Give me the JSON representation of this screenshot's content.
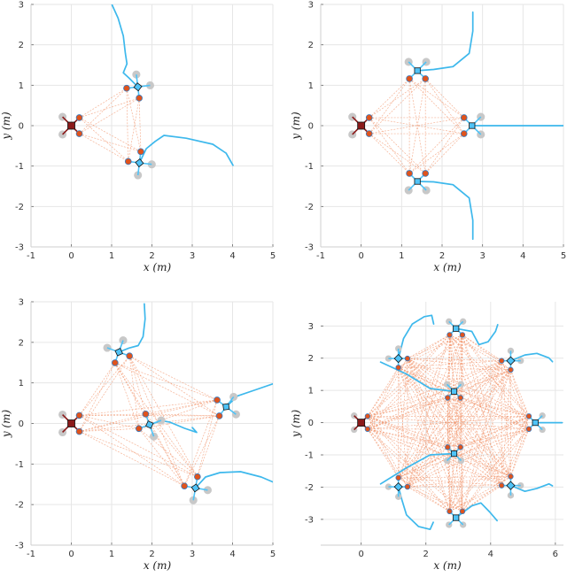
{
  "colors": {
    "leader": "#8b1a1a",
    "follower": "#4fc3f7",
    "trajectory": "#3db8ec",
    "marker": "#e0531c",
    "marker_edge": "#3a7bbf",
    "propeller": "#c8c8c8",
    "link": "#f08a5d",
    "grid": "#e6e6e6",
    "axis": "#cfcfcf"
  },
  "chart_data": [
    {
      "type": "line",
      "xlabel": "x (m)",
      "ylabel": "y (m)",
      "xlim": [
        -1,
        5
      ],
      "ylim": [
        -3,
        3
      ],
      "xticks": [
        -1,
        0,
        1,
        2,
        3,
        4,
        5
      ],
      "yticks": [
        -3,
        -2,
        -1,
        0,
        1,
        2,
        3
      ],
      "grid": true,
      "drones": [
        {
          "role": "leader",
          "x": 0,
          "y": 0,
          "heading": 0
        },
        {
          "role": "follower",
          "x": 1.65,
          "y": 0.96,
          "heading": 232
        },
        {
          "role": "follower",
          "x": 1.69,
          "y": -0.92,
          "heading": 128
        }
      ],
      "trajectories": [
        [
          [
            1.01,
            2.99
          ],
          [
            1.16,
            2.66
          ],
          [
            1.29,
            2.22
          ],
          [
            1.34,
            1.79
          ],
          [
            1.38,
            1.53
          ],
          [
            1.29,
            1.31
          ],
          [
            1.43,
            1.18
          ],
          [
            1.65,
            0.96
          ]
        ],
        [
          [
            1.69,
            -0.92
          ],
          [
            1.86,
            -0.57
          ],
          [
            2.08,
            -0.39
          ],
          [
            2.3,
            -0.24
          ],
          [
            2.85,
            -0.31
          ],
          [
            3.51,
            -0.46
          ],
          [
            3.84,
            -0.68
          ],
          [
            4.01,
            -0.98
          ]
        ]
      ]
    },
    {
      "type": "line",
      "xlabel": "x (m)",
      "ylabel": "y (m)",
      "xlim": [
        -1,
        5
      ],
      "ylim": [
        -3,
        3
      ],
      "xticks": [
        -1,
        0,
        1,
        2,
        3,
        4,
        5
      ],
      "yticks": [
        -3,
        -2,
        -1,
        0,
        1,
        2,
        3
      ],
      "grid": true,
      "drones": [
        {
          "role": "leader",
          "x": 0,
          "y": 0,
          "heading": 0
        },
        {
          "role": "follower",
          "x": 1.39,
          "y": 1.36,
          "heading": 270
        },
        {
          "role": "follower",
          "x": 2.74,
          "y": 0,
          "heading": 180
        },
        {
          "role": "follower",
          "x": 1.39,
          "y": -1.38,
          "heading": 90
        }
      ],
      "trajectories": [
        [
          [
            2.76,
            2.81
          ],
          [
            2.76,
            2.34
          ],
          [
            2.67,
            1.79
          ],
          [
            2.27,
            1.46
          ],
          [
            1.79,
            1.39
          ],
          [
            1.39,
            1.36
          ]
        ],
        [
          [
            2.74,
            0
          ],
          [
            5,
            0
          ]
        ],
        [
          [
            1.39,
            -1.38
          ],
          [
            1.79,
            -1.39
          ],
          [
            2.27,
            -1.46
          ],
          [
            2.67,
            -1.79
          ],
          [
            2.76,
            -2.34
          ],
          [
            2.76,
            -2.81
          ]
        ]
      ]
    },
    {
      "type": "line",
      "xlabel": "x (m)",
      "ylabel": "y (m)",
      "xlim": [
        -1,
        5
      ],
      "ylim": [
        -3,
        3
      ],
      "xticks": [
        -1,
        0,
        1,
        2,
        3,
        4,
        5
      ],
      "yticks": [
        -3,
        -2,
        -1,
        0,
        1,
        2,
        3
      ],
      "grid": true,
      "drones": [
        {
          "role": "leader",
          "x": 0,
          "y": 0,
          "heading": 0
        },
        {
          "role": "follower",
          "x": 1.18,
          "y": 1.76,
          "heading": 295
        },
        {
          "role": "follower",
          "x": 3.84,
          "y": 0.41,
          "heading": 188
        },
        {
          "role": "follower",
          "x": 1.94,
          "y": -0.03,
          "heading": 155
        },
        {
          "role": "follower",
          "x": 3.08,
          "y": -1.59,
          "heading": 125
        }
      ],
      "trajectories": [
        [
          [
            1.81,
            2.95
          ],
          [
            1.83,
            2.58
          ],
          [
            1.78,
            2.14
          ],
          [
            1.66,
            1.92
          ],
          [
            1.43,
            1.86
          ],
          [
            1.18,
            1.76
          ]
        ],
        [
          [
            3.84,
            0.41
          ],
          [
            4.13,
            0.68
          ],
          [
            4.57,
            0.83
          ],
          [
            5.04,
            0.99
          ]
        ],
        [
          [
            1.94,
            -0.03
          ],
          [
            2.23,
            0.07
          ],
          [
            2.45,
            0.03
          ],
          [
            2.81,
            -0.12
          ],
          [
            3.11,
            -0.22
          ],
          [
            3.0,
            -0.1
          ]
        ],
        [
          [
            3.08,
            -1.59
          ],
          [
            3.33,
            -1.32
          ],
          [
            3.69,
            -1.21
          ],
          [
            4.2,
            -1.19
          ],
          [
            4.71,
            -1.32
          ],
          [
            5.04,
            -1.46
          ]
        ]
      ]
    },
    {
      "type": "line",
      "xlabel": "x (m)",
      "ylabel": "y (m)",
      "xlim": [
        -1.25,
        6.25
      ],
      "ylim": [
        -3.8,
        3.75
      ],
      "xticks": [
        0,
        2,
        4,
        6
      ],
      "yticks": [
        -3,
        -2,
        -1,
        0,
        1,
        2,
        3
      ],
      "grid": true,
      "drones": [
        {
          "role": "leader",
          "x": 0,
          "y": 0,
          "heading": 0
        },
        {
          "role": "follower",
          "x": 2.93,
          "y": 2.92,
          "heading": 270
        },
        {
          "role": "follower",
          "x": 1.15,
          "y": 1.99,
          "heading": 315
        },
        {
          "role": "follower",
          "x": 4.62,
          "y": 1.92,
          "heading": 225
        },
        {
          "role": "follower",
          "x": 5.38,
          "y": 0,
          "heading": 180
        },
        {
          "role": "follower",
          "x": 4.62,
          "y": -1.95,
          "heading": 135
        },
        {
          "role": "follower",
          "x": 2.93,
          "y": -2.95,
          "heading": 90
        },
        {
          "role": "follower",
          "x": 1.15,
          "y": -1.99,
          "heading": 45
        },
        {
          "role": "follower",
          "x": 2.87,
          "y": 0.97,
          "heading": 270
        },
        {
          "role": "follower",
          "x": 2.87,
          "y": -0.96,
          "heading": 90
        }
      ],
      "trajectories": [
        [
          [
            2.93,
            2.92
          ],
          [
            3.42,
            2.83
          ],
          [
            3.64,
            2.42
          ],
          [
            3.92,
            2.51
          ],
          [
            4.15,
            2.83
          ],
          [
            4.22,
            3.04
          ]
        ],
        [
          [
            1.15,
            1.99
          ],
          [
            1.31,
            2.61
          ],
          [
            1.58,
            3.06
          ],
          [
            1.95,
            3.29
          ],
          [
            2.18,
            3.33
          ],
          [
            2.24,
            3.06
          ]
        ],
        [
          [
            4.62,
            1.92
          ],
          [
            5.06,
            2.1
          ],
          [
            5.43,
            2.15
          ],
          [
            5.8,
            2.01
          ],
          [
            5.91,
            1.89
          ]
        ],
        [
          [
            5.38,
            0
          ],
          [
            6.21,
            0
          ]
        ],
        [
          [
            4.62,
            -1.95
          ],
          [
            5.06,
            -2.13
          ],
          [
            5.43,
            -2.04
          ],
          [
            5.8,
            -1.9
          ],
          [
            5.91,
            -1.96
          ]
        ],
        [
          [
            2.93,
            -2.95
          ],
          [
            3.42,
            -2.58
          ],
          [
            3.7,
            -2.49
          ],
          [
            3.97,
            -2.77
          ],
          [
            4.2,
            -3.04
          ]
        ],
        [
          [
            1.15,
            -1.99
          ],
          [
            1.26,
            -2.4
          ],
          [
            1.4,
            -2.86
          ],
          [
            1.77,
            -3.22
          ],
          [
            2.13,
            -3.31
          ],
          [
            2.23,
            -3.09
          ]
        ],
        [
          [
            2.87,
            0.97
          ],
          [
            2.13,
            1.06
          ],
          [
            1.4,
            1.51
          ],
          [
            0.6,
            1.88
          ]
        ],
        [
          [
            2.87,
            -0.96
          ],
          [
            2.13,
            -1.0
          ],
          [
            1.4,
            -1.4
          ],
          [
            0.6,
            -1.9
          ]
        ]
      ]
    }
  ]
}
